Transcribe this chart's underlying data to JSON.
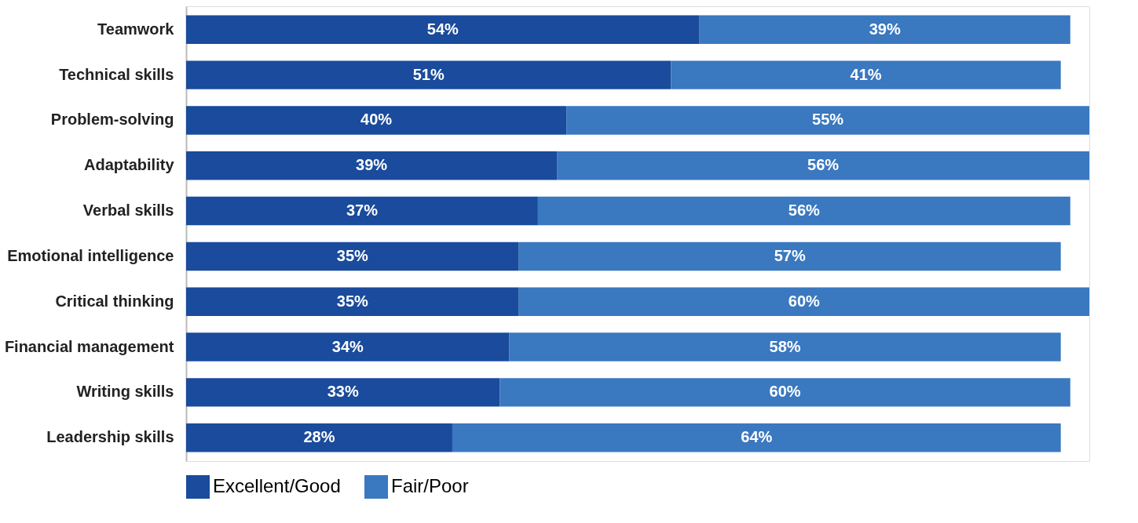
{
  "chart_data": {
    "type": "bar",
    "orientation": "horizontal",
    "stacked": true,
    "data_labels": true,
    "legend": "bottom",
    "grid": false,
    "categories": [
      "Teamwork",
      "Technical skills",
      "Problem-solving",
      "Adaptability",
      "Verbal skills",
      "Emotional intelligence",
      "Critical thinking",
      "Financial management",
      "Writing skills",
      "Leadership skills"
    ],
    "series": [
      {
        "name": "Excellent/Good",
        "color": "#1a4b9c",
        "values": [
          54,
          51,
          40,
          39,
          37,
          35,
          35,
          34,
          33,
          28
        ],
        "value_labels": [
          "54%",
          "51%",
          "40%",
          "39%",
          "37%",
          "35%",
          "35%",
          "34%",
          "33%",
          "28%"
        ]
      },
      {
        "name": "Fair/Poor",
        "color": "#3a78c0",
        "values": [
          39,
          41,
          55,
          56,
          56,
          57,
          60,
          58,
          60,
          64
        ],
        "value_labels": [
          "39%",
          "41%",
          "55%",
          "56%",
          "56%",
          "57%",
          "60%",
          "58%",
          "60%",
          "64%"
        ]
      }
    ]
  }
}
